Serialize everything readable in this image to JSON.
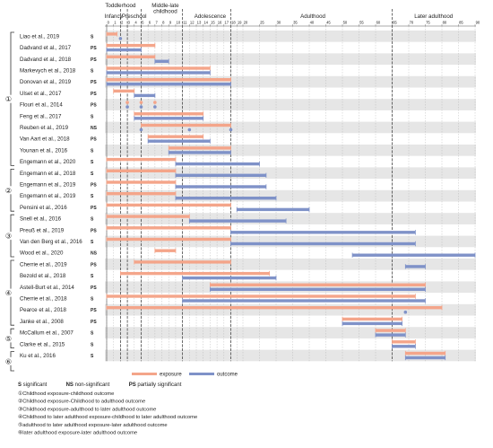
{
  "chart_data": {
    "type": "bar",
    "x_axis": {
      "min": 0,
      "max": 90,
      "grid": true,
      "ticks": [
        0,
        1,
        2,
        3,
        4,
        5,
        6,
        7,
        8,
        9,
        10,
        11,
        12,
        13,
        14,
        15,
        16,
        17,
        18,
        19,
        20,
        25,
        30,
        35,
        40,
        45,
        50,
        55,
        60,
        65,
        70,
        75,
        80,
        85,
        90
      ]
    },
    "stages": [
      {
        "label": "Infancy",
        "start": 0,
        "end": 2
      },
      {
        "label": "Toddlerhood",
        "start": 1,
        "end": 3
      },
      {
        "label": "Preschool",
        "start": 3,
        "end": 5
      },
      {
        "label": "Middle-late childhood",
        "start": 6,
        "end": 11
      },
      {
        "label": "Adolescence",
        "start": 12,
        "end": 18
      },
      {
        "label": "Adulthood",
        "start": 19,
        "end": 64
      },
      {
        "label": "Later adulthood",
        "start": 65,
        "end": 90
      }
    ],
    "stage_boundaries": [
      2,
      3,
      5,
      11,
      18,
      65
    ],
    "groups": [
      {
        "label": "①",
        "rows": [
          0,
          11
        ]
      },
      {
        "label": "②",
        "rows": [
          12,
          15
        ]
      },
      {
        "label": "③",
        "rows": [
          16,
          19
        ]
      },
      {
        "label": "④",
        "rows": [
          20,
          25
        ]
      },
      {
        "label": "⑤",
        "rows": [
          26,
          27
        ]
      },
      {
        "label": "⑥",
        "rows": [
          28,
          29
        ]
      }
    ],
    "rows": [
      {
        "study": "Liao et al., 2019",
        "sig": "S",
        "exposure": [
          0,
          1.5
        ],
        "outcome": null,
        "exposure_points": [],
        "outcome_points": [
          2
        ]
      },
      {
        "study": "Dadvand et al., 2017",
        "sig": "PS",
        "exposure": [
          0,
          7
        ],
        "outcome": [
          0,
          5
        ],
        "exposure_points": [],
        "outcome_points": []
      },
      {
        "study": "Dadvand et al., 2018",
        "sig": "PS",
        "exposure": [
          0,
          7
        ],
        "outcome": [
          7,
          9
        ],
        "exposure_points": [],
        "outcome_points": []
      },
      {
        "study": "Markevych et al., 2018",
        "sig": "S",
        "exposure": [
          0,
          15
        ],
        "outcome": [
          0,
          15
        ],
        "exposure_points": [],
        "outcome_points": []
      },
      {
        "study": "Donovan et al., 2019",
        "sig": "PS",
        "exposure": [
          0,
          18
        ],
        "outcome": [
          0,
          18
        ],
        "exposure_points": [],
        "outcome_points": []
      },
      {
        "study": "Ulset et al., 2017",
        "sig": "PS",
        "exposure": [
          1,
          4
        ],
        "outcome": [
          4,
          7
        ],
        "exposure_points": [],
        "outcome_points": []
      },
      {
        "study": "Flouri et al., 2014",
        "sig": "PS",
        "exposure": null,
        "outcome": null,
        "exposure_points": [
          3,
          5,
          7
        ],
        "outcome_points": [
          3,
          5,
          7
        ]
      },
      {
        "study": "Feng et al., 2017",
        "sig": "S",
        "exposure": [
          4,
          14
        ],
        "outcome": [
          4,
          14
        ],
        "exposure_points": [],
        "outcome_points": []
      },
      {
        "study": "Reuben et al., 2019",
        "sig": "NS",
        "exposure": [
          5,
          18
        ],
        "outcome": null,
        "exposure_points": [],
        "outcome_points": [
          5,
          12,
          18
        ]
      },
      {
        "study": "Van Aart et al., 2018",
        "sig": "PS",
        "exposure": [
          6,
          14
        ],
        "outcome": [
          6,
          15
        ],
        "exposure_points": [],
        "outcome_points": []
      },
      {
        "study": "Younan et al., 2016",
        "sig": "S",
        "exposure": [
          9,
          18
        ],
        "outcome": [
          9,
          18
        ],
        "exposure_points": [],
        "outcome_points": []
      },
      {
        "study": "Engemann et al., 2020",
        "sig": "S",
        "exposure": [
          0,
          10
        ],
        "outcome": [
          10,
          25
        ],
        "exposure_points": [],
        "outcome_points": []
      },
      {
        "study": "Engemann et al., 2018",
        "sig": "S",
        "exposure": [
          0,
          10
        ],
        "outcome": [
          10,
          27
        ],
        "exposure_points": [],
        "outcome_points": []
      },
      {
        "study": "Engemann et al., 2019",
        "sig": "PS",
        "exposure": [
          0,
          10
        ],
        "outcome": [
          10,
          27
        ],
        "exposure_points": [],
        "outcome_points": []
      },
      {
        "study": "Engemann et al., 2019",
        "sig": "S",
        "exposure": [
          0,
          10
        ],
        "outcome": [
          10,
          30
        ],
        "exposure_points": [],
        "outcome_points": []
      },
      {
        "study": "Pensini et al., 2016",
        "sig": "PS",
        "exposure": [
          0,
          18
        ],
        "outcome": [
          19,
          40
        ],
        "exposure_points": [],
        "outcome_points": []
      },
      {
        "study": "Snell et al., 2016",
        "sig": "S",
        "exposure": [
          0,
          12
        ],
        "outcome": [
          12,
          33
        ],
        "exposure_points": [],
        "outcome_points": []
      },
      {
        "study": "Preuß et al., 2019",
        "sig": "PS",
        "exposure": [
          0,
          18
        ],
        "outcome": [
          18,
          72
        ],
        "exposure_points": [],
        "outcome_points": []
      },
      {
        "study": "Van den Berg et al., 2016",
        "sig": "S",
        "exposure": [
          0,
          18
        ],
        "outcome": [
          18,
          72
        ],
        "exposure_points": [],
        "outcome_points": []
      },
      {
        "study": "Wood et al., 2020",
        "sig": "NS",
        "exposure": [
          7,
          10
        ],
        "outcome": [
          53,
          90
        ],
        "exposure_points": [],
        "outcome_points": []
      },
      {
        "study": "Cherrie et al., 2019",
        "sig": "PS",
        "exposure": [
          4,
          18
        ],
        "outcome": [
          69,
          75
        ],
        "exposure_points": [],
        "outcome_points": []
      },
      {
        "study": "Bezold et al., 2018",
        "sig": "S",
        "exposure": [
          2,
          28
        ],
        "outcome": [
          11,
          30
        ],
        "exposure_points": [],
        "outcome_points": []
      },
      {
        "study": "Astell-Burt et al., 2014",
        "sig": "PS",
        "exposure": [
          15,
          75
        ],
        "outcome": [
          15,
          75
        ],
        "exposure_points": [],
        "outcome_points": []
      },
      {
        "study": "Cherrie et al., 2018",
        "sig": "S",
        "exposure": [
          0,
          72
        ],
        "outcome": [
          11,
          75
        ],
        "exposure_points": [],
        "outcome_points": []
      },
      {
        "study": "Pearce et al., 2018",
        "sig": "PS",
        "exposure": [
          0,
          80
        ],
        "outcome": null,
        "exposure_points": [],
        "outcome_points": [
          69
        ]
      },
      {
        "study": "Janke et al., 2008",
        "sig": "PS",
        "exposure": [
          50,
          68
        ],
        "outcome": [
          50,
          68
        ],
        "exposure_points": [],
        "outcome_points": []
      },
      {
        "study": "McCallum et al., 2007",
        "sig": "S",
        "exposure": [
          60,
          69
        ],
        "outcome": [
          60,
          69
        ],
        "exposure_points": [],
        "outcome_points": []
      },
      {
        "study": "Clarke et al., 2015",
        "sig": "S",
        "exposure": [
          65,
          72
        ],
        "outcome": [
          65,
          72
        ],
        "exposure_points": [],
        "outcome_points": []
      },
      {
        "study": "Ku et al., 2016",
        "sig": "S",
        "exposure": [
          69,
          81
        ],
        "outcome": [
          69,
          81
        ],
        "exposure_points": [],
        "outcome_points": []
      }
    ],
    "series": [
      {
        "name": "exposure",
        "color": "#f4a58a"
      },
      {
        "name": "outcome",
        "color": "#7f92c8"
      }
    ],
    "significance_legend": [
      {
        "code": "S",
        "meaning": "significant"
      },
      {
        "code": "NS",
        "meaning": "non-significant"
      },
      {
        "code": "PS",
        "meaning": "partially significant"
      }
    ],
    "group_notes": [
      "①Childhood exposure-childhood outcome",
      "②Childhood exposure-Childhood to adulthood outcome",
      "③Childhood  exposure-adulthood to later adulthood outcome",
      "④Childhood to later adulthood exposure-childhood to later adulthood outcome",
      "⑤adulthood to later adulthood exposure-later adulthood outcome",
      "⑥later adulthood exposure-later adulthood outcome"
    ],
    "colors": {
      "row_band": "#e6e6e6",
      "grid": "#b0b0b0",
      "stage_line": "#333333"
    }
  }
}
